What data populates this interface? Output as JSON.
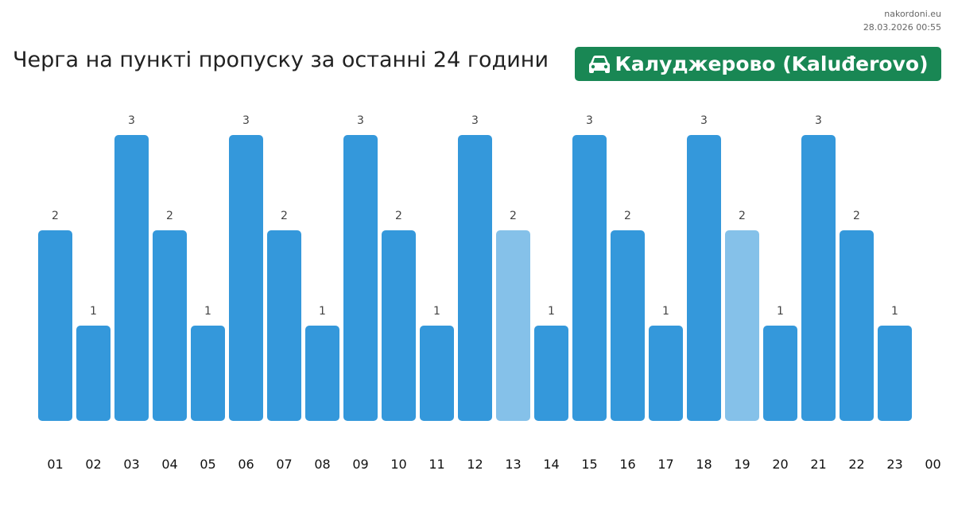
{
  "site": {
    "name": "nakordoni.eu",
    "timestamp": "28.03.2026 00:55"
  },
  "header": {
    "title": "Черга на пункті пропуску за останні 24 години",
    "checkpoint": "Калуджерово (Kaluđerovo)",
    "checkpoint_icon": "car-icon",
    "badge_color": "#198754"
  },
  "chart_data": {
    "type": "bar",
    "categories": [
      "01",
      "02",
      "03",
      "04",
      "05",
      "06",
      "07",
      "08",
      "09",
      "10",
      "11",
      "12",
      "13",
      "14",
      "15",
      "16",
      "17",
      "18",
      "19",
      "20",
      "21",
      "22",
      "23"
    ],
    "values": [
      2,
      1,
      3,
      2,
      1,
      3,
      2,
      1,
      3,
      2,
      1,
      3,
      2,
      1,
      3,
      2,
      1,
      3,
      2,
      1,
      3,
      2,
      1
    ],
    "highlighted": [
      "13",
      "19"
    ],
    "extra_tick": "00",
    "colors": {
      "bar": "#3498db",
      "highlight": "#85c1e9"
    },
    "ylim": [
      0,
      3
    ],
    "grid": false,
    "xlabel": "",
    "ylabel": "",
    "title": ""
  }
}
